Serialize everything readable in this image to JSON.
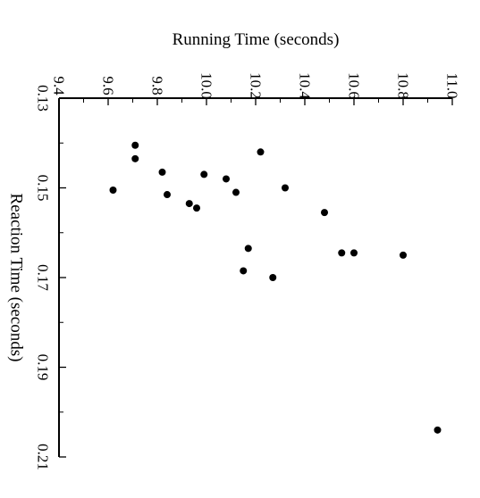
{
  "chart_data": {
    "type": "scatter",
    "orientation": "rotated-90-clockwise",
    "title": "",
    "xlabel": "Running Time (seconds)",
    "ylabel": "Reaction Time (seconds)",
    "xlim": [
      9.4,
      11.0
    ],
    "ylim": [
      0.13,
      0.21
    ],
    "x_ticks": [
      "9.4",
      "9.6",
      "9.8",
      "10.0",
      "10.2",
      "10.4",
      "10.6",
      "10.8",
      "11.0"
    ],
    "y_ticks": [
      "0.13",
      "0.15",
      "0.17",
      "0.19",
      "0.21"
    ],
    "grid": false,
    "colors": {
      "points": "#000000",
      "axes": "#000000"
    },
    "points": [
      {
        "x": 9.62,
        "y": 0.1505
      },
      {
        "x": 9.71,
        "y": 0.1405
      },
      {
        "x": 9.71,
        "y": 0.1435
      },
      {
        "x": 9.82,
        "y": 0.1465
      },
      {
        "x": 9.84,
        "y": 0.1515
      },
      {
        "x": 9.93,
        "y": 0.1535
      },
      {
        "x": 9.96,
        "y": 0.1545
      },
      {
        "x": 9.99,
        "y": 0.147
      },
      {
        "x": 10.08,
        "y": 0.148
      },
      {
        "x": 10.12,
        "y": 0.151
      },
      {
        "x": 10.15,
        "y": 0.1685
      },
      {
        "x": 10.17,
        "y": 0.1635
      },
      {
        "x": 10.22,
        "y": 0.142
      },
      {
        "x": 10.27,
        "y": 0.17
      },
      {
        "x": 10.32,
        "y": 0.15
      },
      {
        "x": 10.48,
        "y": 0.1555
      },
      {
        "x": 10.55,
        "y": 0.1645
      },
      {
        "x": 10.6,
        "y": 0.1645
      },
      {
        "x": 10.8,
        "y": 0.165
      },
      {
        "x": 10.94,
        "y": 0.204
      }
    ]
  }
}
